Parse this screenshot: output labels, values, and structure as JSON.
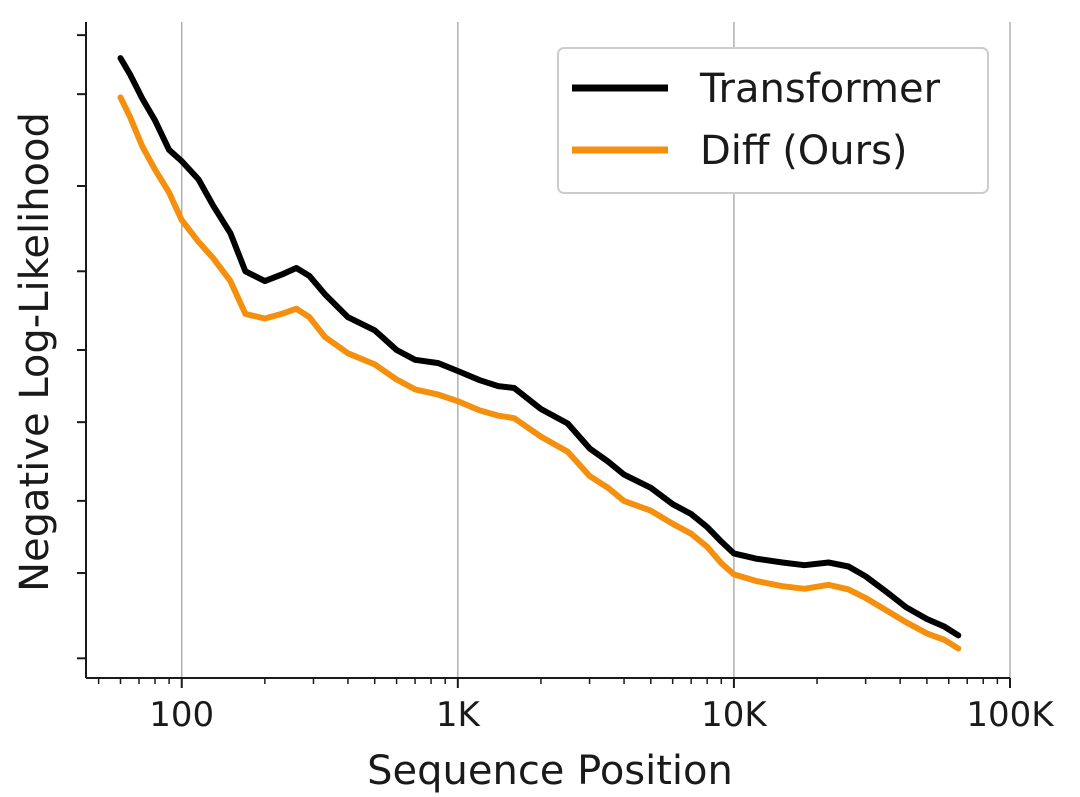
{
  "chart_data": {
    "type": "line",
    "title": "",
    "xlabel": "Sequence Position",
    "ylabel": "Negative Log-Likelihood",
    "xscale": "log",
    "xlim": [
      45,
      100000
    ],
    "ylim": [
      0,
      100
    ],
    "grid": "vertical",
    "legend_position": "top-right",
    "x_ticks": [
      {
        "value": 100,
        "label": "100"
      },
      {
        "value": 1000,
        "label": "1K"
      },
      {
        "value": 10000,
        "label": "10K"
      },
      {
        "value": 100000,
        "label": "100K"
      }
    ],
    "y_ticks_unlabeled": [
      3,
      16,
      27,
      39,
      50,
      62,
      75,
      89,
      98
    ],
    "series": [
      {
        "name": "Transformer",
        "color": "#000000",
        "x": [
          60,
          65,
          72,
          80,
          90,
          100,
          115,
          130,
          150,
          170,
          200,
          230,
          260,
          290,
          330,
          400,
          500,
          600,
          700,
          850,
          1000,
          1200,
          1400,
          1600,
          2000,
          2500,
          3000,
          3500,
          4000,
          5000,
          6000,
          7000,
          8000,
          9000,
          10000,
          12000,
          15000,
          18000,
          22000,
          26000,
          30000,
          36000,
          42000,
          50000,
          58000,
          65000
        ],
        "values": [
          94.5,
          92.0,
          88.3,
          85.0,
          80.5,
          78.8,
          76.0,
          72.0,
          67.8,
          62.0,
          60.5,
          61.5,
          62.5,
          61.3,
          58.5,
          55.0,
          53.0,
          50.0,
          48.5,
          48.0,
          46.8,
          45.4,
          44.5,
          44.2,
          41.0,
          38.8,
          35.0,
          33.0,
          31.0,
          29.0,
          26.5,
          25.0,
          23.0,
          20.8,
          19.0,
          18.2,
          17.6,
          17.2,
          17.6,
          17.0,
          15.5,
          13.0,
          10.8,
          9.0,
          7.8,
          6.5
        ]
      },
      {
        "name": "Diff (Ours)",
        "color": "#f5900e",
        "x": [
          60,
          65,
          72,
          80,
          90,
          100,
          115,
          130,
          150,
          170,
          200,
          230,
          260,
          290,
          330,
          400,
          500,
          600,
          700,
          850,
          1000,
          1200,
          1400,
          1600,
          2000,
          2500,
          3000,
          3500,
          4000,
          5000,
          6000,
          7000,
          8000,
          9000,
          10000,
          12000,
          15000,
          18000,
          22000,
          26000,
          30000,
          36000,
          42000,
          50000,
          58000,
          65000
        ],
        "values": [
          88.5,
          85.5,
          81.0,
          77.5,
          74.0,
          69.8,
          66.5,
          64.0,
          60.5,
          55.5,
          54.8,
          55.5,
          56.3,
          55.0,
          52.0,
          49.5,
          47.8,
          45.5,
          44.0,
          43.2,
          42.2,
          40.8,
          40.0,
          39.6,
          36.8,
          34.5,
          30.8,
          29.0,
          27.0,
          25.5,
          23.5,
          22.0,
          20.0,
          17.5,
          15.8,
          14.8,
          14.0,
          13.6,
          14.2,
          13.5,
          12.2,
          10.2,
          8.5,
          6.8,
          5.8,
          4.5
        ]
      }
    ]
  }
}
